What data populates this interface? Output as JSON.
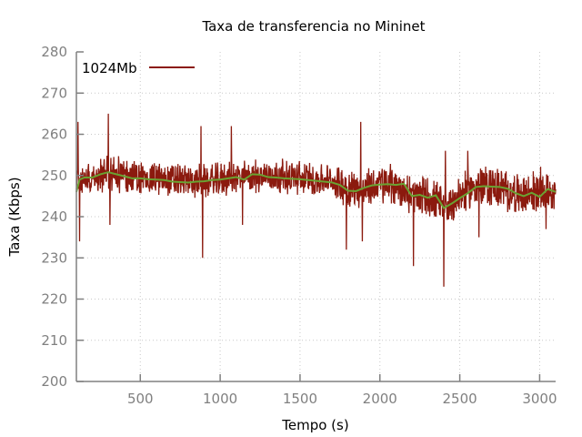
{
  "chart_data": {
    "type": "line",
    "title": "Taxa de transferencia no Mininet",
    "xlabel": "Tempo (s)",
    "ylabel": "Taxa (Kbps)",
    "xlim": [
      100,
      3100
    ],
    "ylim": [
      200,
      280
    ],
    "x_ticks": [
      500,
      1000,
      1500,
      2000,
      2500,
      3000
    ],
    "y_ticks": [
      200,
      210,
      220,
      230,
      240,
      250,
      260,
      270,
      280
    ],
    "grid": true,
    "legend_position": "top-left",
    "colors": {
      "raw": "#8b1a0e",
      "smooth": "#6aa232",
      "axis": "#808080",
      "grid": "#c8c8c8"
    },
    "series": [
      {
        "name": "1024Mb",
        "sample_interval": 2,
        "envelope": {
          "x": [
            100,
            200,
            300,
            500,
            700,
            900,
            1100,
            1300,
            1500,
            1700,
            1800,
            1900,
            2000,
            2100,
            2200,
            2300,
            2400,
            2500,
            2600,
            2700,
            2800,
            2900,
            3000,
            3100
          ],
          "center": [
            249,
            249.5,
            250.5,
            249.5,
            249,
            248.5,
            249.5,
            250,
            249.5,
            248.5,
            247,
            246.5,
            248,
            247.5,
            245,
            245,
            242,
            245,
            247.5,
            247.5,
            246,
            245,
            246.5,
            246
          ],
          "spread": [
            4,
            4,
            4.5,
            4,
            4,
            4,
            4,
            4,
            4,
            4,
            4.5,
            4.5,
            5,
            5,
            5,
            5,
            5,
            5,
            5,
            5,
            5,
            5,
            5,
            5
          ]
        },
        "spikes": [
          {
            "x": 110,
            "y": 263
          },
          {
            "x": 120,
            "y": 234
          },
          {
            "x": 300,
            "y": 265
          },
          {
            "x": 310,
            "y": 238
          },
          {
            "x": 880,
            "y": 262
          },
          {
            "x": 890,
            "y": 230
          },
          {
            "x": 1070,
            "y": 262
          },
          {
            "x": 1140,
            "y": 238
          },
          {
            "x": 1790,
            "y": 232
          },
          {
            "x": 1880,
            "y": 263
          },
          {
            "x": 1890,
            "y": 234
          },
          {
            "x": 2210,
            "y": 228
          },
          {
            "x": 2400,
            "y": 223
          },
          {
            "x": 2410,
            "y": 256
          },
          {
            "x": 2550,
            "y": 256
          },
          {
            "x": 2620,
            "y": 258
          },
          {
            "x": 2620,
            "y": 235
          },
          {
            "x": 3040,
            "y": 237
          }
        ]
      },
      {
        "name": "",
        "x": [
          100,
          120,
          150,
          200,
          250,
          300,
          350,
          400,
          450,
          500,
          550,
          600,
          650,
          700,
          750,
          800,
          850,
          900,
          950,
          1000,
          1050,
          1100,
          1150,
          1200,
          1250,
          1300,
          1350,
          1400,
          1450,
          1500,
          1550,
          1600,
          1650,
          1700,
          1750,
          1800,
          1850,
          1900,
          1950,
          2000,
          2050,
          2100,
          2150,
          2200,
          2250,
          2300,
          2350,
          2400,
          2450,
          2500,
          2550,
          2600,
          2650,
          2700,
          2750,
          2800,
          2850,
          2900,
          2950,
          3000,
          3050,
          3100
        ],
        "values": [
          246,
          249,
          249.5,
          249.5,
          250.3,
          250.8,
          250.3,
          249.8,
          249.3,
          249.3,
          249.1,
          249.0,
          248.9,
          248.5,
          248.4,
          248.3,
          248.5,
          248.6,
          248.9,
          249.0,
          249.3,
          249.6,
          249.0,
          250.3,
          250.2,
          249.6,
          249.5,
          249.3,
          249.2,
          249.1,
          248.9,
          248.7,
          248.5,
          248.3,
          247.7,
          246.3,
          246.2,
          247.0,
          247.6,
          247.8,
          247.9,
          247.7,
          248.0,
          245.0,
          245.3,
          244.6,
          245.2,
          242.1,
          243.2,
          244.5,
          245.7,
          247.2,
          247.4,
          247.3,
          247.2,
          246.8,
          245.7,
          245.0,
          245.8,
          244.8,
          246.7,
          246.0
        ]
      }
    ]
  }
}
